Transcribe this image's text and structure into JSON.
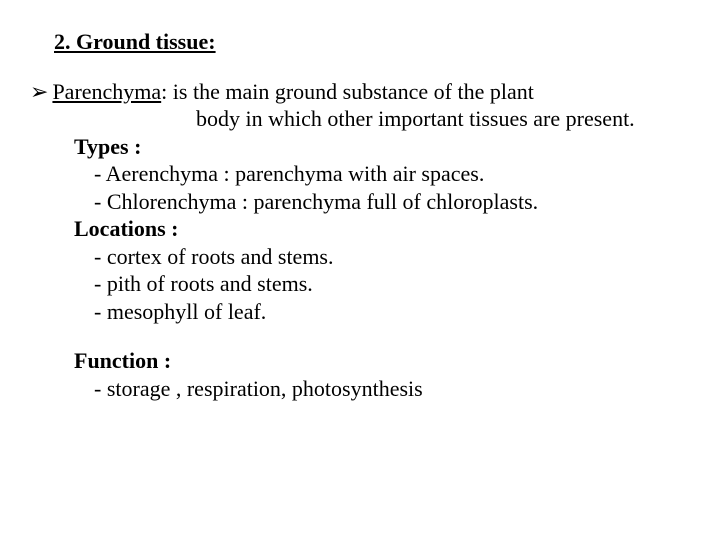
{
  "heading": "2. Ground tissue:",
  "bullet": {
    "glyph": "➢",
    "term": "Parenchyma",
    "line1_rest": ": is the main ground substance of the plant",
    "line2": "body in which other important tissues are present."
  },
  "types": {
    "label": "Types :",
    "items": [
      "- Aerenchyma : parenchyma with air spaces.",
      "- Chlorenchyma : parenchyma full of chloroplasts."
    ]
  },
  "locations": {
    "label": "Locations :",
    "items": [
      "- cortex of roots and stems.",
      "- pith of roots and stems.",
      "- mesophyll of leaf."
    ]
  },
  "function": {
    "label": "Function :",
    "items": [
      "- storage , respiration, photosynthesis"
    ]
  },
  "colors": {
    "text": "#000000",
    "background": "#ffffff"
  },
  "typography": {
    "base_fontsize_pt": 17,
    "font_family": "Times New Roman"
  }
}
